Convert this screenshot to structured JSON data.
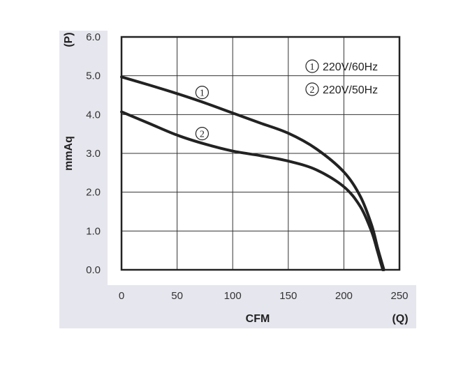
{
  "chart_data": {
    "type": "line",
    "xlabel": "CFM",
    "ylabel": "mmAq",
    "x_axis_symbol": "(Q)",
    "y_axis_symbol": "(P)",
    "xlim": [
      0,
      250
    ],
    "ylim": [
      0,
      6
    ],
    "x_ticks": [
      "0",
      "50",
      "100",
      "150",
      "200",
      "250"
    ],
    "y_ticks": [
      "0.0",
      "1.0",
      "2.0",
      "3.0",
      "4.0",
      "5.0",
      "6.0"
    ],
    "grid": true,
    "legend_position": "top-right",
    "series": [
      {
        "name": "220V/60Hz",
        "marker": "1",
        "x": [
          0,
          25,
          50,
          75,
          100,
          125,
          150,
          175,
          200,
          215,
          225,
          230,
          234,
          236
        ],
        "y": [
          4.97,
          4.76,
          4.54,
          4.3,
          4.04,
          3.78,
          3.52,
          3.12,
          2.52,
          1.88,
          1.15,
          0.6,
          0.2,
          0.0
        ]
      },
      {
        "name": "220V/50Hz",
        "marker": "2",
        "x": [
          0,
          25,
          50,
          75,
          100,
          125,
          150,
          175,
          200,
          215,
          225,
          230,
          233,
          235
        ],
        "y": [
          4.07,
          3.77,
          3.47,
          3.24,
          3.06,
          2.94,
          2.8,
          2.58,
          2.14,
          1.62,
          0.98,
          0.5,
          0.2,
          0.0
        ]
      }
    ]
  },
  "colors": {
    "curve": "#222222",
    "grid": "#333333",
    "axis_band": "#e6e6ee",
    "tick_text": "#333333"
  }
}
